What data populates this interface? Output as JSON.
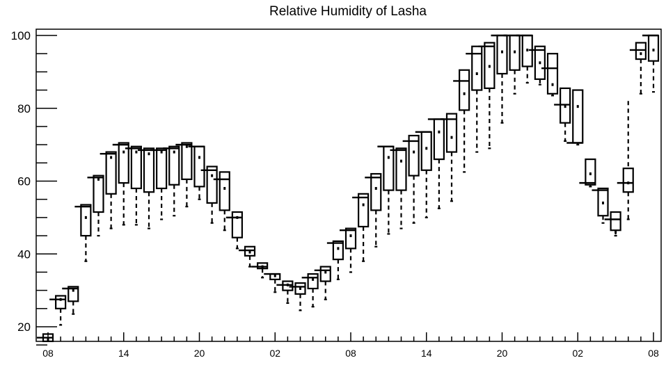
{
  "chart_data": {
    "type": "box",
    "title": "Relative Humidity of Lasha",
    "xlabel": "",
    "ylabel": "",
    "ylim": [
      14.5,
      102
    ],
    "y_ticks": [
      20,
      40,
      60,
      80,
      100
    ],
    "x_tick_labels": [
      "08",
      "14",
      "20",
      "02",
      "08",
      "14",
      "20",
      "02",
      "08"
    ],
    "x_tick_label_positions": [
      0,
      6,
      12,
      18,
      24,
      30,
      36,
      42,
      48
    ],
    "grid": false,
    "legend": "none",
    "box_color": "#000000",
    "boxes": [
      {
        "x": 0,
        "min": 16,
        "q1": 16,
        "median": 17,
        "q3": 18,
        "max": 18,
        "mean": 16.5
      },
      {
        "x": 1,
        "min": 20.5,
        "q1": 25,
        "median": 27.5,
        "q3": 28.5,
        "max": 28.5,
        "mean": 27.5
      },
      {
        "x": 2,
        "min": 23.5,
        "q1": 27,
        "median": 30.5,
        "q3": 31,
        "max": 31,
        "mean": 30
      },
      {
        "x": 3,
        "min": 38,
        "q1": 45,
        "median": 53,
        "q3": 53.5,
        "max": 53.5,
        "mean": 50
      },
      {
        "x": 4,
        "min": 45,
        "q1": 51.5,
        "median": 61,
        "q3": 61.5,
        "max": 61.5,
        "mean": 60.5
      },
      {
        "x": 5,
        "min": 47,
        "q1": 56.5,
        "median": 67.5,
        "q3": 68,
        "max": 68,
        "mean": 66.5
      },
      {
        "x": 6,
        "min": 48,
        "q1": 59.5,
        "median": 70,
        "q3": 70.5,
        "max": 70.5,
        "mean": 68
      },
      {
        "x": 7,
        "min": 48,
        "q1": 58,
        "median": 69,
        "q3": 69.5,
        "max": 69.5,
        "mean": 68
      },
      {
        "x": 8,
        "min": 47,
        "q1": 57,
        "median": 68.5,
        "q3": 69,
        "max": 69,
        "mean": 67.5
      },
      {
        "x": 9,
        "min": 49.5,
        "q1": 58,
        "median": 68.5,
        "q3": 69,
        "max": 69,
        "mean": 68
      },
      {
        "x": 10,
        "min": 50.5,
        "q1": 59,
        "median": 69,
        "q3": 69.5,
        "max": 69.5,
        "mean": 68
      },
      {
        "x": 11,
        "min": 53,
        "q1": 60.5,
        "median": 70,
        "q3": 70.5,
        "max": 70.5,
        "mean": 69.5
      },
      {
        "x": 12,
        "min": 55,
        "q1": 58.5,
        "median": 69.5,
        "q3": 69.5,
        "max": 69.5,
        "mean": 66.5
      },
      {
        "x": 13,
        "min": 48.5,
        "q1": 54,
        "median": 63,
        "q3": 64,
        "max": 64,
        "mean": 61.5
      },
      {
        "x": 14,
        "min": 46.5,
        "q1": 52,
        "median": 60.5,
        "q3": 62.5,
        "max": 62.5,
        "mean": 58
      },
      {
        "x": 15,
        "min": 41.5,
        "q1": 44.5,
        "median": 50,
        "q3": 51.5,
        "max": 51.5,
        "mean": 50
      },
      {
        "x": 16,
        "min": 36.5,
        "q1": 39.5,
        "median": 41,
        "q3": 42,
        "max": 42,
        "mean": 40.5
      },
      {
        "x": 17,
        "min": 33.5,
        "q1": 36,
        "median": 36.5,
        "q3": 37.5,
        "max": 37.5,
        "mean": 36.5
      },
      {
        "x": 18,
        "min": 29.5,
        "q1": 33,
        "median": 34.5,
        "q3": 34.5,
        "max": 34.5,
        "mean": 34
      },
      {
        "x": 19,
        "min": 26.5,
        "q1": 30,
        "median": 31.5,
        "q3": 32.5,
        "max": 32.5,
        "mean": 31.5
      },
      {
        "x": 20,
        "min": 24.5,
        "q1": 29,
        "median": 31,
        "q3": 32,
        "max": 32,
        "mean": 30.5
      },
      {
        "x": 21,
        "min": 25.5,
        "q1": 30.5,
        "median": 33.5,
        "q3": 34.5,
        "max": 34.5,
        "mean": 33
      },
      {
        "x": 22,
        "min": 27.5,
        "q1": 32.5,
        "median": 35.5,
        "q3": 36.5,
        "max": 36.5,
        "mean": 35
      },
      {
        "x": 23,
        "min": 33,
        "q1": 38.5,
        "median": 43,
        "q3": 43.5,
        "max": 43.5,
        "mean": 41.5
      },
      {
        "x": 24,
        "min": 35,
        "q1": 41.5,
        "median": 46.5,
        "q3": 47,
        "max": 47,
        "mean": 45
      },
      {
        "x": 25,
        "min": 38,
        "q1": 47.5,
        "median": 55.5,
        "q3": 56.5,
        "max": 56.5,
        "mean": 53.5
      },
      {
        "x": 26,
        "min": 42,
        "q1": 52,
        "median": 61,
        "q3": 62,
        "max": 62,
        "mean": 58
      },
      {
        "x": 27,
        "min": 45.5,
        "q1": 57.5,
        "median": 69.5,
        "q3": 69.5,
        "max": 69.5,
        "mean": 66.5
      },
      {
        "x": 28,
        "min": 47,
        "q1": 57.5,
        "median": 68.5,
        "q3": 69,
        "max": 69,
        "mean": 65.5
      },
      {
        "x": 29,
        "min": 48.5,
        "q1": 61.5,
        "median": 71,
        "q3": 72.5,
        "max": 72.5,
        "mean": 68
      },
      {
        "x": 30,
        "min": 50,
        "q1": 63,
        "median": 73.5,
        "q3": 73.5,
        "max": 73.5,
        "mean": 69
      },
      {
        "x": 31,
        "min": 52.5,
        "q1": 66,
        "median": 77,
        "q3": 77,
        "max": 77,
        "mean": 73.5
      },
      {
        "x": 32,
        "min": 54.5,
        "q1": 68,
        "median": 77,
        "q3": 78.5,
        "max": 78.5,
        "mean": 72
      },
      {
        "x": 33,
        "min": 62.5,
        "q1": 79.5,
        "median": 87.5,
        "q3": 90.5,
        "max": 90.5,
        "mean": 84
      },
      {
        "x": 34,
        "min": 68,
        "q1": 85,
        "median": 95,
        "q3": 97,
        "max": 97,
        "mean": 89.5
      },
      {
        "x": 35,
        "min": 69,
        "q1": 85.5,
        "median": 97,
        "q3": 98,
        "max": 98,
        "mean": 91.5
      },
      {
        "x": 36,
        "min": 76,
        "q1": 89.5,
        "median": 100,
        "q3": 100,
        "max": 100,
        "mean": 95.5
      },
      {
        "x": 37,
        "min": 84,
        "q1": 90.5,
        "median": 100,
        "q3": 100,
        "max": 100,
        "mean": 95.5
      },
      {
        "x": 38,
        "min": 87,
        "q1": 91.5,
        "median": 100,
        "q3": 100,
        "max": 100,
        "mean": 96
      },
      {
        "x": 39,
        "min": 86.5,
        "q1": 88,
        "median": 96,
        "q3": 97,
        "max": 97,
        "mean": 92.5
      },
      {
        "x": 40,
        "min": 83.5,
        "q1": 84,
        "median": 91,
        "q3": 95,
        "max": 95,
        "mean": 86.5
      },
      {
        "x": 41,
        "min": 71,
        "q1": 76,
        "median": 81,
        "q3": 85.5,
        "max": 85.5,
        "mean": 80.5
      },
      {
        "x": 42,
        "min": 70,
        "q1": 70.5,
        "median": 70.5,
        "q3": 85,
        "max": 85,
        "mean": 80.5
      },
      {
        "x": 43,
        "min": 58.5,
        "q1": 59,
        "median": 59.5,
        "q3": 66,
        "max": 66,
        "mean": 62
      },
      {
        "x": 44,
        "min": 48.5,
        "q1": 50.5,
        "median": 57.5,
        "q3": 58,
        "max": 58,
        "mean": 54
      },
      {
        "x": 45,
        "min": 45,
        "q1": 46.5,
        "median": 49.5,
        "q3": 51.5,
        "max": 51.5,
        "mean": 46
      },
      {
        "x": 46,
        "min": 49.5,
        "q1": 57,
        "median": 59.5,
        "q3": 63.5,
        "max": 82,
        "mean": 59.5
      },
      {
        "x": 47,
        "min": 84,
        "q1": 93.5,
        "median": 96,
        "q3": 98,
        "max": 98,
        "mean": 95
      },
      {
        "x": 48,
        "min": 84.5,
        "q1": 93,
        "median": 100,
        "q3": 100,
        "max": 100,
        "mean": 96
      }
    ]
  }
}
